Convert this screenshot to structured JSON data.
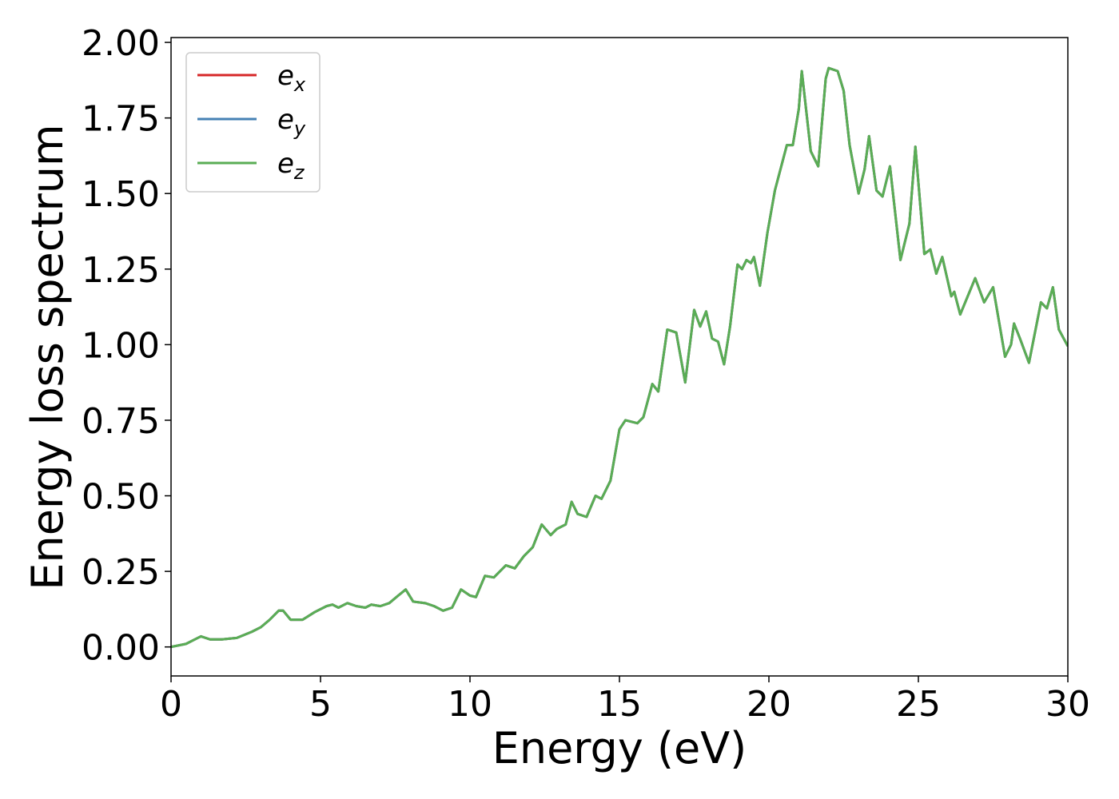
{
  "chart_data": {
    "type": "line",
    "x_label": "Energy (eV)",
    "y_label": "Energy loss spectrum",
    "x": [
      0,
      0.5,
      0.8,
      1.0,
      1.3,
      1.7,
      2.2,
      2.7,
      3.0,
      3.3,
      3.6,
      3.75,
      4.0,
      4.4,
      4.8,
      5.2,
      5.4,
      5.6,
      5.9,
      6.2,
      6.5,
      6.7,
      7.0,
      7.3,
      7.6,
      7.85,
      8.1,
      8.5,
      8.8,
      9.1,
      9.4,
      9.7,
      10.0,
      10.2,
      10.5,
      10.8,
      11.2,
      11.5,
      11.8,
      12.1,
      12.4,
      12.7,
      12.9,
      13.2,
      13.4,
      13.6,
      13.9,
      14.2,
      14.4,
      14.7,
      15.0,
      15.2,
      15.6,
      15.8,
      16.1,
      16.3,
      16.6,
      16.9,
      17.2,
      17.5,
      17.7,
      17.9,
      18.1,
      18.3,
      18.5,
      18.7,
      18.95,
      19.1,
      19.25,
      19.4,
      19.5,
      19.7,
      19.95,
      20.2,
      20.6,
      20.8,
      21.0,
      21.1,
      21.4,
      21.65,
      21.9,
      22.0,
      22.3,
      22.5,
      22.7,
      23.0,
      23.2,
      23.35,
      23.6,
      23.8,
      24.05,
      24.4,
      24.7,
      24.9,
      25.2,
      25.4,
      25.6,
      25.8,
      26.1,
      26.2,
      26.4,
      26.9,
      27.2,
      27.5,
      27.9,
      28.1,
      28.2,
      28.4,
      28.7,
      29.1,
      29.3,
      29.5,
      29.7,
      30
    ],
    "series": [
      {
        "name": "ex",
        "color": "#d62728",
        "values": [
          0.0,
          0.01,
          0.025,
          0.035,
          0.025,
          0.025,
          0.03,
          0.05,
          0.065,
          0.09,
          0.12,
          0.12,
          0.09,
          0.09,
          0.115,
          0.135,
          0.14,
          0.13,
          0.145,
          0.135,
          0.13,
          0.14,
          0.135,
          0.145,
          0.17,
          0.19,
          0.15,
          0.145,
          0.135,
          0.12,
          0.13,
          0.19,
          0.17,
          0.165,
          0.235,
          0.23,
          0.27,
          0.26,
          0.3,
          0.33,
          0.405,
          0.37,
          0.39,
          0.405,
          0.48,
          0.44,
          0.43,
          0.5,
          0.49,
          0.55,
          0.72,
          0.75,
          0.74,
          0.76,
          0.87,
          0.845,
          1.05,
          1.04,
          0.875,
          1.115,
          1.06,
          1.11,
          1.02,
          1.01,
          0.935,
          1.06,
          1.265,
          1.25,
          1.28,
          1.27,
          1.29,
          1.195,
          1.37,
          1.51,
          1.66,
          1.66,
          1.78,
          1.905,
          1.64,
          1.59,
          1.88,
          1.915,
          1.905,
          1.84,
          1.66,
          1.5,
          1.58,
          1.69,
          1.51,
          1.49,
          1.59,
          1.28,
          1.4,
          1.655,
          1.3,
          1.315,
          1.235,
          1.29,
          1.16,
          1.175,
          1.1,
          1.22,
          1.14,
          1.19,
          0.96,
          1.0,
          1.07,
          1.02,
          0.94,
          1.14,
          1.12,
          1.19,
          1.05,
          0.995
        ]
      },
      {
        "name": "ey",
        "color": "#4682b4",
        "values": [
          0.0,
          0.01,
          0.025,
          0.035,
          0.025,
          0.025,
          0.03,
          0.05,
          0.065,
          0.09,
          0.12,
          0.12,
          0.09,
          0.09,
          0.115,
          0.135,
          0.14,
          0.13,
          0.145,
          0.135,
          0.13,
          0.14,
          0.135,
          0.145,
          0.17,
          0.19,
          0.15,
          0.145,
          0.135,
          0.12,
          0.13,
          0.19,
          0.17,
          0.165,
          0.235,
          0.23,
          0.27,
          0.26,
          0.3,
          0.33,
          0.405,
          0.37,
          0.39,
          0.405,
          0.48,
          0.44,
          0.43,
          0.5,
          0.49,
          0.55,
          0.72,
          0.75,
          0.74,
          0.76,
          0.87,
          0.845,
          1.05,
          1.04,
          0.875,
          1.115,
          1.06,
          1.11,
          1.02,
          1.01,
          0.935,
          1.06,
          1.265,
          1.25,
          1.28,
          1.27,
          1.29,
          1.195,
          1.37,
          1.51,
          1.66,
          1.66,
          1.78,
          1.905,
          1.64,
          1.59,
          1.88,
          1.915,
          1.905,
          1.84,
          1.66,
          1.5,
          1.58,
          1.69,
          1.51,
          1.49,
          1.59,
          1.28,
          1.4,
          1.655,
          1.3,
          1.315,
          1.235,
          1.29,
          1.16,
          1.175,
          1.1,
          1.22,
          1.14,
          1.19,
          0.96,
          1.0,
          1.07,
          1.02,
          0.94,
          1.14,
          1.12,
          1.19,
          1.05,
          0.995
        ]
      },
      {
        "name": "ez",
        "color": "#5aad55",
        "values": [
          0.0,
          0.01,
          0.025,
          0.035,
          0.025,
          0.025,
          0.03,
          0.05,
          0.065,
          0.09,
          0.12,
          0.12,
          0.09,
          0.09,
          0.115,
          0.135,
          0.14,
          0.13,
          0.145,
          0.135,
          0.13,
          0.14,
          0.135,
          0.145,
          0.17,
          0.19,
          0.15,
          0.145,
          0.135,
          0.12,
          0.13,
          0.19,
          0.17,
          0.165,
          0.235,
          0.23,
          0.27,
          0.26,
          0.3,
          0.33,
          0.405,
          0.37,
          0.39,
          0.405,
          0.48,
          0.44,
          0.43,
          0.5,
          0.49,
          0.55,
          0.72,
          0.75,
          0.74,
          0.76,
          0.87,
          0.845,
          1.05,
          1.04,
          0.875,
          1.115,
          1.06,
          1.11,
          1.02,
          1.01,
          0.935,
          1.06,
          1.265,
          1.25,
          1.28,
          1.27,
          1.29,
          1.195,
          1.37,
          1.51,
          1.66,
          1.66,
          1.78,
          1.905,
          1.64,
          1.59,
          1.88,
          1.915,
          1.905,
          1.84,
          1.66,
          1.5,
          1.58,
          1.69,
          1.51,
          1.49,
          1.59,
          1.28,
          1.4,
          1.655,
          1.3,
          1.315,
          1.235,
          1.29,
          1.16,
          1.175,
          1.1,
          1.22,
          1.14,
          1.19,
          0.96,
          1.0,
          1.07,
          1.02,
          0.94,
          1.14,
          1.12,
          1.19,
          1.05,
          0.995
        ]
      }
    ],
    "xlim": [
      0,
      30
    ],
    "xticks": [
      0,
      5,
      10,
      15,
      20,
      25,
      30
    ],
    "ylim": [
      -0.096,
      2.016
    ],
    "yticks": [
      {
        "value": 0,
        "label": "0.00"
      },
      {
        "value": 0.25,
        "label": "0.25"
      },
      {
        "value": 0.5,
        "label": "0.50"
      },
      {
        "value": 0.75,
        "label": "0.75"
      },
      {
        "value": 1.0,
        "label": "1.00"
      },
      {
        "value": 1.25,
        "label": "1.25"
      },
      {
        "value": 1.5,
        "label": "1.50"
      },
      {
        "value": 1.75,
        "label": "1.75"
      },
      {
        "value": 2.0,
        "label": "2.00"
      }
    ],
    "legend": "upper left",
    "grid": false
  }
}
